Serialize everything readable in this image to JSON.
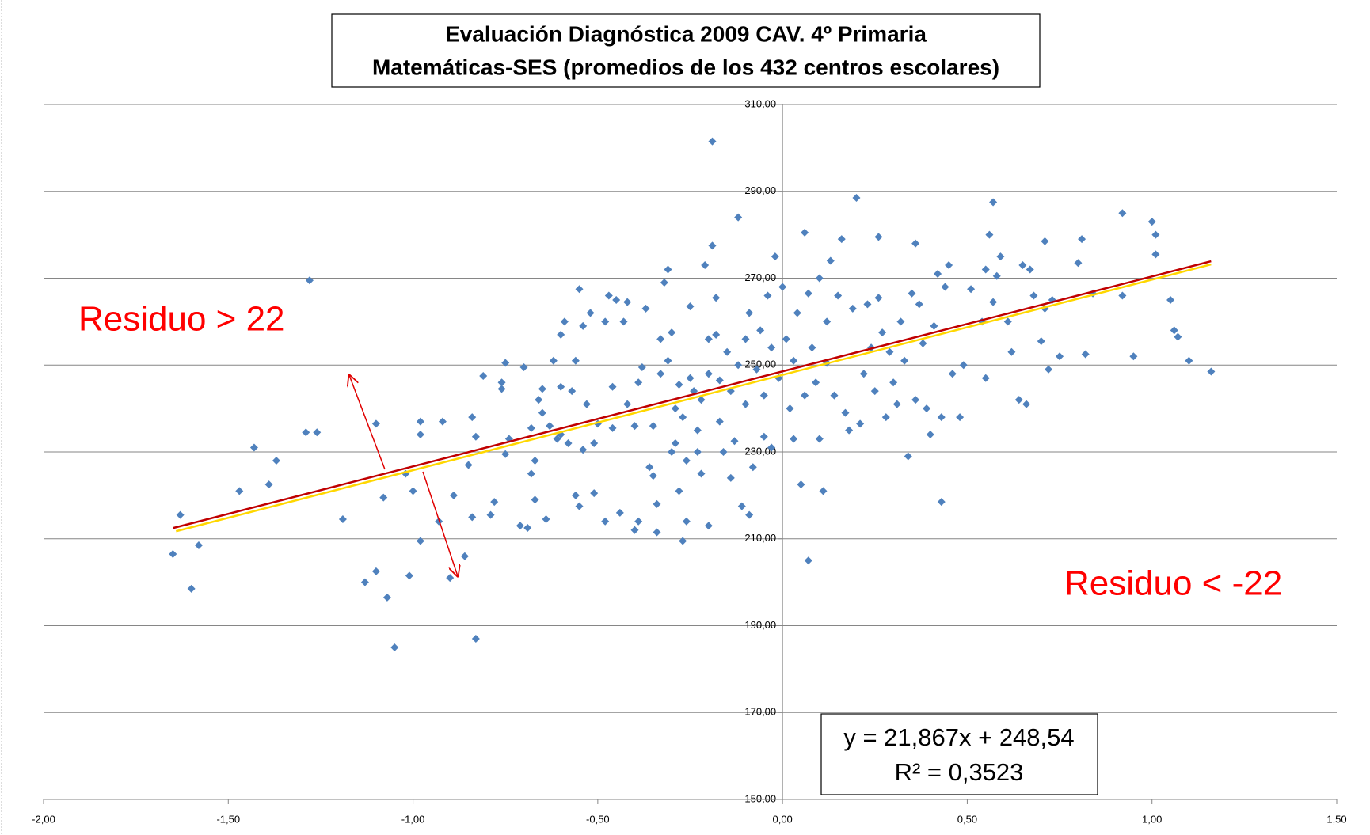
{
  "chart_data": {
    "type": "scatter",
    "title": "Evaluación Diagnóstica 2009 CAV. 4º Primaria",
    "subtitle": "Matemáticas-SES (promedios de los 432 centros escolares)",
    "annotations": [
      "Residuo > 22",
      "Residuo < -22"
    ],
    "color": "#4f81bd",
    "grid": true,
    "xlim": [
      -2,
      1.5
    ],
    "ylim": [
      150,
      310
    ],
    "xticks": [
      {
        "value": -2,
        "label": "-2,00"
      },
      {
        "value": -1.5,
        "label": "-1,50"
      },
      {
        "value": -1,
        "label": "-1,00"
      },
      {
        "value": -0.5,
        "label": "-0,50"
      },
      {
        "value": 0,
        "label": "0,00"
      },
      {
        "value": 0.5,
        "label": "0,50"
      },
      {
        "value": 1,
        "label": "1,00"
      },
      {
        "value": 1.5,
        "label": "1,50"
      }
    ],
    "yticks": [
      {
        "value": 150,
        "label": "150,00"
      },
      {
        "value": 170,
        "label": "170,00"
      },
      {
        "value": 190,
        "label": "190,00"
      },
      {
        "value": 210,
        "label": "210,00"
      },
      {
        "value": 230,
        "label": "230,00"
      },
      {
        "value": 250,
        "label": "250,00"
      },
      {
        "value": 270,
        "label": "270,00"
      },
      {
        "value": 290,
        "label": "290,00"
      },
      {
        "value": 310,
        "label": "310,00"
      }
    ],
    "trendline": {
      "slope": 21.867,
      "intercept": 248.54,
      "equation": "y = 21,867x + 248,54",
      "r2_label": "R² = 0,3523",
      "color": "#c00000",
      "shadow_color": "#ffd700"
    },
    "x": [
      -1.65,
      -1.63,
      -1.6,
      -1.58,
      -1.47,
      -1.43,
      -1.39,
      -1.37,
      -1.29,
      -1.28,
      -1.26,
      -1.19,
      -1.13,
      -1.1,
      -1.1,
      -1.08,
      -1.07,
      -1.05,
      -1.02,
      -1.01,
      -1,
      -0.98,
      -0.98,
      -0.98,
      -0.93,
      -0.92,
      -0.9,
      -0.89,
      -0.86,
      -0.85,
      -0.84,
      -0.84,
      -0.83,
      -0.83,
      -0.81,
      -0.79,
      -0.78,
      -0.76,
      -0.76,
      -0.75,
      -0.75,
      -0.74,
      -0.71,
      -0.7,
      -0.69,
      -0.68,
      -0.68,
      -0.67,
      -0.67,
      -0.66,
      -0.65,
      -0.65,
      -0.64,
      -0.63,
      -0.62,
      -0.61,
      -0.6,
      -0.6,
      -0.6,
      -0.59,
      -0.58,
      -0.57,
      -0.56,
      -0.56,
      -0.55,
      -0.55,
      -0.54,
      -0.54,
      -0.53,
      -0.52,
      -0.51,
      -0.51,
      -0.5,
      -0.48,
      -0.48,
      -0.47,
      -0.46,
      -0.46,
      -0.45,
      -0.44,
      -0.43,
      -0.42,
      -0.42,
      -0.4,
      -0.4,
      -0.39,
      -0.39,
      -0.38,
      -0.37,
      -0.36,
      -0.35,
      -0.35,
      -0.34,
      -0.34,
      -0.33,
      -0.33,
      -0.32,
      -0.31,
      -0.31,
      -0.3,
      -0.3,
      -0.29,
      -0.29,
      -0.28,
      -0.28,
      -0.27,
      -0.27,
      -0.26,
      -0.26,
      -0.25,
      -0.25,
      -0.24,
      -0.23,
      -0.23,
      -0.22,
      -0.22,
      -0.21,
      -0.2,
      -0.2,
      -0.2,
      -0.19,
      -0.19,
      -0.18,
      -0.18,
      -0.17,
      -0.17,
      -0.16,
      -0.15,
      -0.14,
      -0.14,
      -0.13,
      -0.12,
      -0.12,
      -0.11,
      -0.1,
      -0.1,
      -0.09,
      -0.09,
      -0.08,
      -0.07,
      -0.06,
      -0.05,
      -0.05,
      -0.04,
      -0.03,
      -0.03,
      -0.02,
      -0.01,
      0,
      0.01,
      0.02,
      0.03,
      0.03,
      0.04,
      0.05,
      0.06,
      0.06,
      0.07,
      0.07,
      0.08,
      0.09,
      0.1,
      0.1,
      0.11,
      0.12,
      0.12,
      0.13,
      0.14,
      0.15,
      0.16,
      0.17,
      0.18,
      0.19,
      0.2,
      0.21,
      0.22,
      0.23,
      0.24,
      0.25,
      0.26,
      0.26,
      0.27,
      0.28,
      0.29,
      0.3,
      0.31,
      0.32,
      0.33,
      0.34,
      0.35,
      0.36,
      0.36,
      0.37,
      0.38,
      0.39,
      0.4,
      0.41,
      0.42,
      0.43,
      0.43,
      0.44,
      0.45,
      0.46,
      0.48,
      0.49,
      0.51,
      0.54,
      0.55,
      0.55,
      0.56,
      0.57,
      0.57,
      0.58,
      0.59,
      0.61,
      0.62,
      0.64,
      0.65,
      0.66,
      0.67,
      0.68,
      0.7,
      0.71,
      0.71,
      0.72,
      0.73,
      0.75,
      0.8,
      0.81,
      0.82,
      0.84,
      0.92,
      0.92,
      0.95,
      1,
      1.01,
      1.01,
      1.05,
      1.06,
      1.07,
      1.1,
      1.16
    ],
    "values": [
      206.5,
      215.5,
      198.5,
      208.5,
      221,
      231,
      222.5,
      228,
      234.5,
      269.5,
      234.5,
      214.5,
      200,
      202.5,
      236.5,
      219.5,
      196.5,
      185,
      225,
      201.5,
      221,
      209.5,
      234,
      237,
      214,
      237,
      201,
      220,
      206,
      227,
      215,
      238,
      233.5,
      187,
      247.5,
      215.5,
      218.5,
      244.5,
      246,
      229.5,
      250.5,
      233,
      213,
      249.5,
      212.5,
      225,
      235.5,
      219,
      228,
      242,
      239,
      244.5,
      214.5,
      236,
      251,
      233,
      234,
      245,
      257,
      260,
      232,
      244,
      251,
      220,
      217.5,
      267.5,
      230.5,
      259,
      241,
      262,
      232,
      220.5,
      236.5,
      214,
      260,
      266,
      235.5,
      245,
      265,
      216,
      260,
      264.5,
      241,
      236,
      212,
      214,
      246,
      249.5,
      263,
      226.5,
      236,
      224.5,
      218,
      211.5,
      248,
      256,
      269,
      251,
      272,
      257.5,
      230,
      240,
      232,
      245.5,
      221,
      209.5,
      238,
      214,
      228,
      263.5,
      247,
      244,
      235,
      230,
      242,
      225,
      273,
      256,
      248,
      213,
      277.5,
      301.5,
      265.5,
      257,
      246.5,
      237,
      230,
      253,
      244,
      224,
      232.5,
      284,
      250,
      217.5,
      241,
      256,
      262,
      215.5,
      226.5,
      249,
      258,
      233.5,
      243,
      266,
      254,
      231,
      275,
      247,
      268,
      256,
      240,
      251,
      233,
      262,
      222.5,
      280.5,
      243,
      205,
      266.5,
      254,
      246,
      270,
      233,
      221,
      260,
      250.5,
      274,
      243,
      266,
      279,
      239,
      235,
      263,
      288.5,
      236.5,
      248,
      264,
      254,
      244,
      279.5,
      265.5,
      257.5,
      238,
      253,
      246,
      241,
      260,
      251,
      229,
      266.5,
      278,
      242,
      264,
      255,
      240,
      234,
      259,
      271,
      218.5,
      238,
      268,
      273,
      248,
      238,
      250,
      267.5,
      260,
      272,
      247,
      280,
      287.5,
      264.5,
      270.5,
      275,
      260,
      253,
      242,
      273,
      241,
      272,
      266,
      255.5,
      278.5,
      263,
      249,
      265,
      252,
      273.5,
      279,
      252.5,
      266.5,
      285,
      266,
      252,
      283,
      280,
      275.5,
      265,
      258,
      256.5,
      251,
      248.5
    ]
  }
}
